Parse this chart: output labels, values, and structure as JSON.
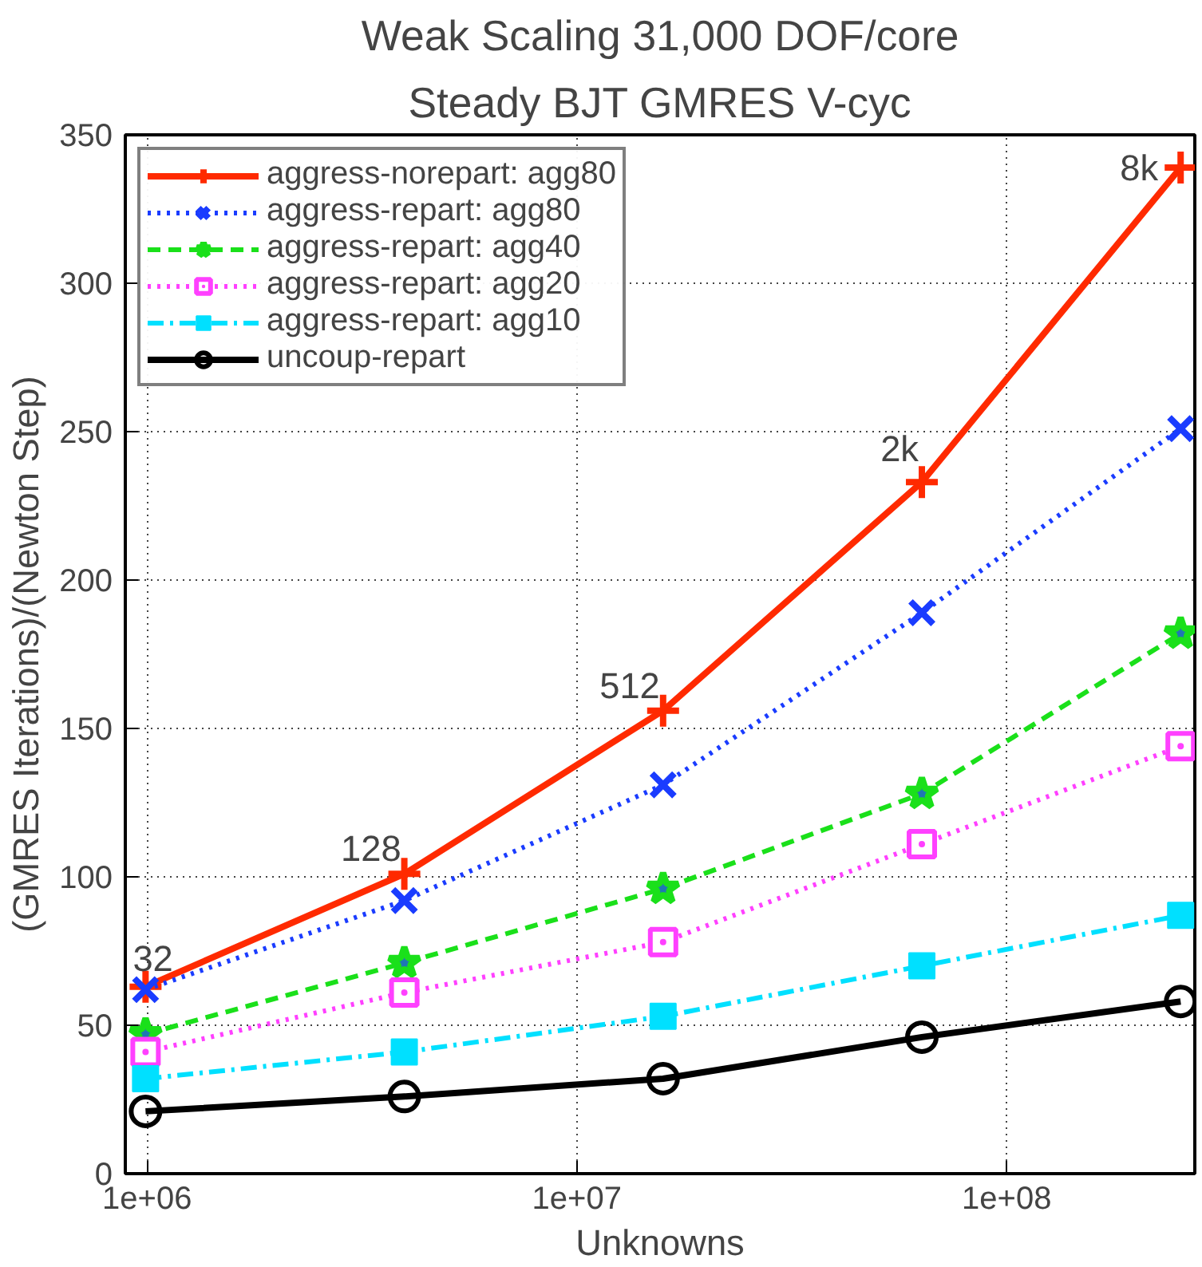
{
  "chart_data": {
    "type": "line",
    "title": "Weak Scaling 31,000 DOF/core",
    "subtitle": "Steady BJT GMRES V-cyc",
    "xlabel": "Unknowns",
    "ylabel": "(GMRES Iterations)/(Newton Step)",
    "log": "x",
    "grid": true,
    "legend": "top left",
    "xlim": [
      890000,
      274000000
    ],
    "xticks": [
      {
        "value": 1000000,
        "label": "1e+06"
      },
      {
        "value": 10000000,
        "label": "1e+07"
      },
      {
        "value": 100000000,
        "label": "1e+08"
      }
    ],
    "ylim": [
      0,
      350
    ],
    "yticks": [
      0,
      50,
      100,
      150,
      200,
      250,
      300,
      350
    ],
    "x": [
      992000,
      3968000,
      15872000,
      63488000,
      253952000
    ],
    "series": [
      {
        "name": "aggress-norepart: agg80",
        "color": "#ff2a00",
        "marker": "cross",
        "line_style": "solid",
        "values": [
          63,
          101,
          156,
          233,
          339
        ]
      },
      {
        "name": "aggress-repart: agg80",
        "color": "#1a3cff",
        "marker": "x",
        "line_style": "dotted",
        "values": [
          62,
          92,
          131,
          189,
          251
        ]
      },
      {
        "name": "aggress-repart: agg40",
        "color": "#1ae01a",
        "marker": "star",
        "line_style": "dashed",
        "values": [
          47,
          71,
          96,
          128,
          182
        ]
      },
      {
        "name": "aggress-repart: agg20",
        "color": "#ff40ff",
        "marker": "square",
        "line_style": "dotted",
        "values": [
          41,
          61,
          78,
          111,
          144
        ]
      },
      {
        "name": "aggress-repart: agg10",
        "color": "#00e0ff",
        "marker": "square",
        "line_style": "dashdot",
        "values": [
          32,
          41,
          53,
          70,
          87
        ]
      },
      {
        "name": "uncoup-repart",
        "color": "#000000",
        "marker": "circle",
        "line_style": "solid",
        "values": [
          21,
          26,
          32,
          46,
          58
        ]
      }
    ],
    "annotations": [
      {
        "text": "32",
        "x": 992000,
        "y": 63
      },
      {
        "text": "128",
        "x": 3968000,
        "y": 101
      },
      {
        "text": "512",
        "x": 15872000,
        "y": 156
      },
      {
        "text": "2k",
        "x": 63488000,
        "y": 233
      },
      {
        "text": "8k",
        "x": 253952000,
        "y": 339
      }
    ]
  }
}
